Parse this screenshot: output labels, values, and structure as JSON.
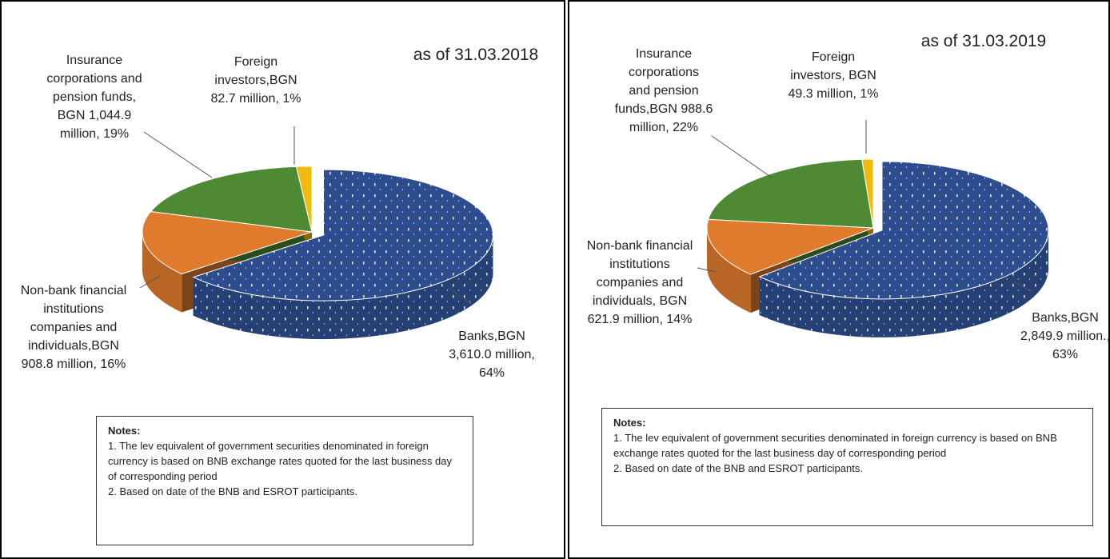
{
  "chart_data": [
    {
      "type": "pie3d",
      "title": "as of 31.03.2018",
      "values": [
        3610.0,
        908.8,
        1044.9,
        82.7
      ],
      "value_labels": [
        "Banks,BGN\n3,610.0 million,\n64%",
        "Non-bank financial\ninstitutions\ncompanies  and\nindividuals,BGN\n908.8 million,  16%",
        "Insurance\ncorporations and\npension funds,\nBGN 1,044.9\nmillion, 19%",
        "Foreign\ninvestors,BGN\n82.7 million, 1%"
      ],
      "colors": [
        "#2e4d8f",
        "#e07b2e",
        "#4e8a34",
        "#f2b90f"
      ],
      "notes": {
        "title": "Notes:",
        "items": [
          "1. The lev equivalent of government securities denominated in foreign currency is based on BNB exchange rates quoted for the last business  day of corresponding period",
          "2. Based on date of the BNB and ESROT participants."
        ]
      }
    },
    {
      "type": "pie3d",
      "title": "as of 31.03.2019",
      "values": [
        2849.9,
        621.9,
        988.6,
        49.3
      ],
      "value_labels": [
        "Banks,BGN\n2,849.9 million.,\n63%",
        "Non-bank financial\ninstitutions\ncompanies and\nindividuals, BGN\n621.9 million, 14%",
        "Insurance\ncorporations\nand  pension\nfunds,BGN 988.6\nmillion, 22%",
        "Foreign\ninvestors, BGN\n49.3 million, 1%"
      ],
      "colors": [
        "#2e4d8f",
        "#e07b2e",
        "#4e8a34",
        "#f2b90f"
      ],
      "notes": {
        "title": "Notes:",
        "items": [
          "1. The lev equivalent of government securities denominated in foreign currency is based on BNB exchange rates quoted for the last business  day of corresponding period",
          "2. Based on date of the BNB and ESROT participants."
        ]
      }
    }
  ]
}
